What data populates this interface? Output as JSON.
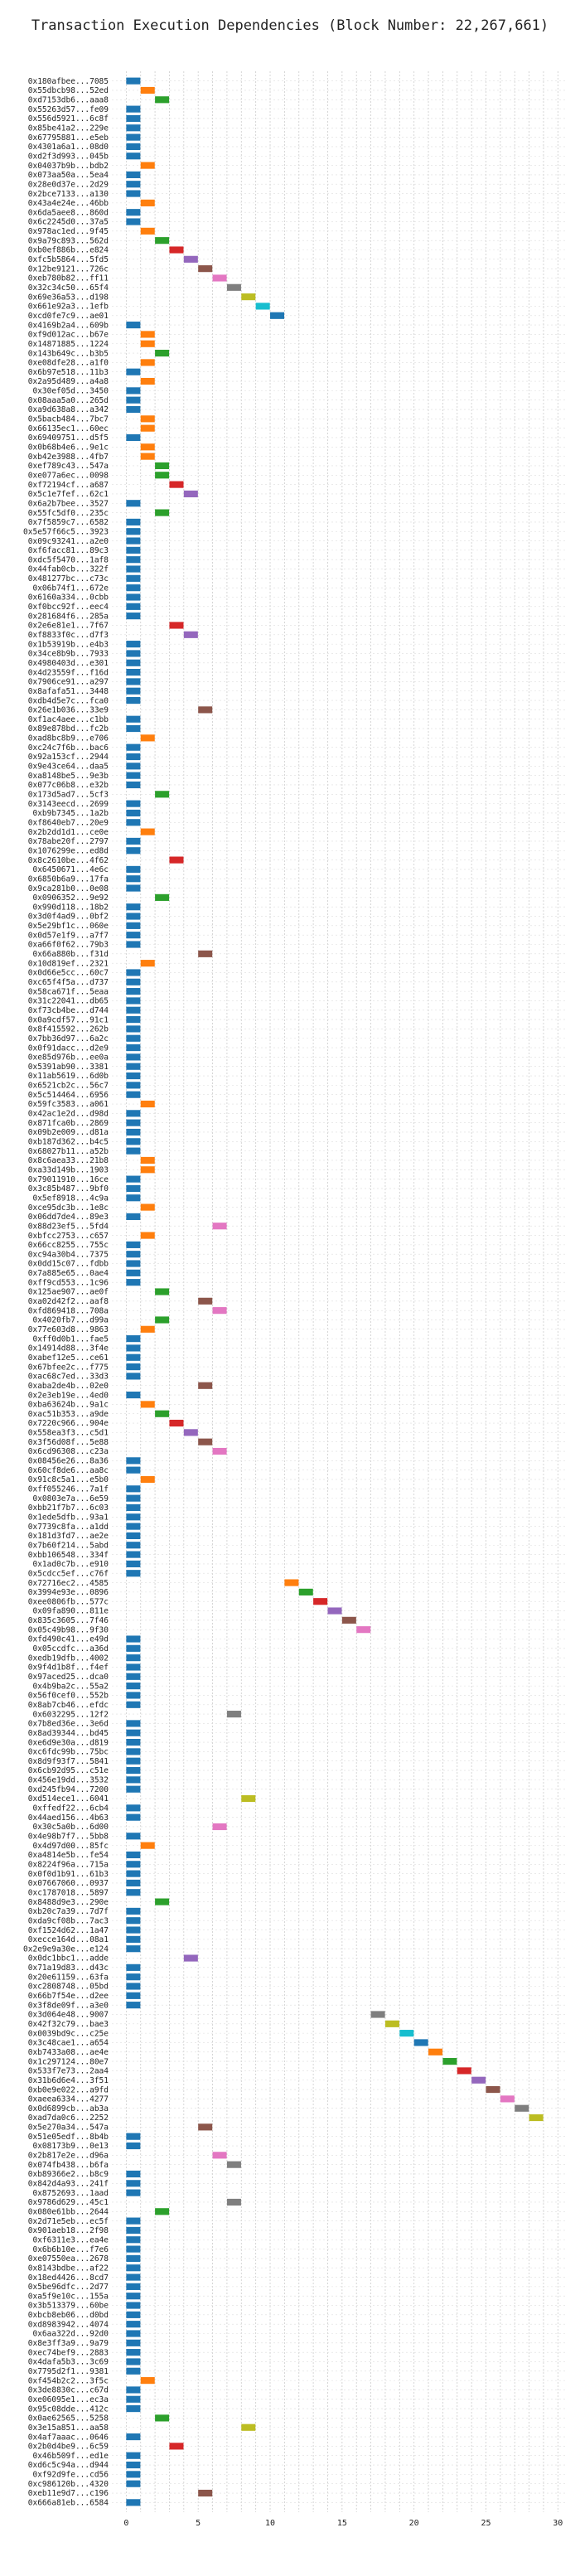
{
  "chart_data": {
    "type": "bar",
    "orientation": "horizontal-gantt",
    "title": "Transaction Execution Dependencies (Block Number: 22,267,661)",
    "xlabel": "",
    "ylabel": "",
    "xlim": [
      -1,
      30.5
    ],
    "xticks": [
      0,
      5,
      10,
      15,
      20,
      25,
      30
    ],
    "grid": true,
    "legend": "none",
    "palette": [
      "#1f77b4",
      "#ff7f0e",
      "#2ca02c",
      "#d62728",
      "#9467bd",
      "#8c564b",
      "#e377c2",
      "#7f7f7f",
      "#bcbd22",
      "#17becf"
    ],
    "bar_duration": 1,
    "transactions": [
      {
        "label": "0x180afbee...7085",
        "start": 0
      },
      {
        "label": "0x55dbcb98...52ed",
        "start": 1
      },
      {
        "label": "0xd7153db6...aaa8",
        "start": 2
      },
      {
        "label": "0x55263d57...fe09",
        "start": 0
      },
      {
        "label": "0x556d5921...6c8f",
        "start": 0
      },
      {
        "label": "0x85be41a2...229e",
        "start": 0
      },
      {
        "label": "0x67795881...e5eb",
        "start": 0
      },
      {
        "label": "0x4301a6a1...08d0",
        "start": 0
      },
      {
        "label": "0xd2f3d993...045b",
        "start": 0
      },
      {
        "label": "0x04037b9b...bdb2",
        "start": 1
      },
      {
        "label": "0x073aa50a...5ea4",
        "start": 0
      },
      {
        "label": "0x28e0d37e...2d29",
        "start": 0
      },
      {
        "label": "0x2bce7133...a130",
        "start": 0
      },
      {
        "label": "0x43a4e24e...46bb",
        "start": 1
      },
      {
        "label": "0x6da5aee8...860d",
        "start": 0
      },
      {
        "label": "0x6c2245d0...37a5",
        "start": 0
      },
      {
        "label": "0x978ac1ed...9f45",
        "start": 1
      },
      {
        "label": "0x9a79c893...562d",
        "start": 2
      },
      {
        "label": "0xb0ef886b...e824",
        "start": 3
      },
      {
        "label": "0xfc5b5864...5fd5",
        "start": 4
      },
      {
        "label": "0x12be9121...726c",
        "start": 5
      },
      {
        "label": "0xeb780b82...ff11",
        "start": 6
      },
      {
        "label": "0x32c34c50...65f4",
        "start": 7
      },
      {
        "label": "0x69e36a53...d198",
        "start": 8
      },
      {
        "label": "0x661e92a3...1efb",
        "start": 9
      },
      {
        "label": "0xcd0fe7c9...ae01",
        "start": 10
      },
      {
        "label": "0x4169b2a4...609b",
        "start": 0
      },
      {
        "label": "0xf9d012ac...b67e",
        "start": 1
      },
      {
        "label": "0x14871885...1224",
        "start": 1
      },
      {
        "label": "0x143b649c...b3b5",
        "start": 2
      },
      {
        "label": "0xe08dfe28...a1f0",
        "start": 1
      },
      {
        "label": "0x6b97e518...11b3",
        "start": 0
      },
      {
        "label": "0x2a95d489...a4a8",
        "start": 1
      },
      {
        "label": "0x30ef05d...3450",
        "start": 0
      },
      {
        "label": "0x08aaa5a0...265d",
        "start": 0
      },
      {
        "label": "0xa9d638a8...a342",
        "start": 0
      },
      {
        "label": "0x5bacb484...7bc7",
        "start": 1
      },
      {
        "label": "0x66135ec1...60ec",
        "start": 1
      },
      {
        "label": "0x69409751...d5f5",
        "start": 0
      },
      {
        "label": "0x0b68b4e6...9e1c",
        "start": 1
      },
      {
        "label": "0xb42e3988...4fb7",
        "start": 1
      },
      {
        "label": "0xef789c43...547a",
        "start": 2
      },
      {
        "label": "0xe077a6ec...0098",
        "start": 2
      },
      {
        "label": "0xf72194cf...a687",
        "start": 3
      },
      {
        "label": "0x5c1e7fef...62c1",
        "start": 4
      },
      {
        "label": "0x6a2b7bee...3527",
        "start": 0
      },
      {
        "label": "0x55fc5df0...235c",
        "start": 2
      },
      {
        "label": "0x7f5859c7...6582",
        "start": 0
      },
      {
        "label": "0x5e57f66c5...3923",
        "start": 0
      },
      {
        "label": "0x09c93241...a2e0",
        "start": 0
      },
      {
        "label": "0xf6facc81...89c3",
        "start": 0
      },
      {
        "label": "0xdc5f5470...1af8",
        "start": 0
      },
      {
        "label": "0x44fab0cb...322f",
        "start": 0
      },
      {
        "label": "0x481277bc...c73c",
        "start": 0
      },
      {
        "label": "0x06b74f1...672e",
        "start": 0
      },
      {
        "label": "0x6160a334...0cbb",
        "start": 0
      },
      {
        "label": "0xf0bcc92f...eec4",
        "start": 0
      },
      {
        "label": "0x281684f6...285a",
        "start": 0
      },
      {
        "label": "0x2e6e81e1...7f67",
        "start": 3
      },
      {
        "label": "0xf8833f0c...d7f3",
        "start": 4
      },
      {
        "label": "0x1b53919b...e4b3",
        "start": 0
      },
      {
        "label": "0x34ce8b9b...7933",
        "start": 0
      },
      {
        "label": "0x4980403d...e301",
        "start": 0
      },
      {
        "label": "0x4d23559f...f16d",
        "start": 0
      },
      {
        "label": "0x7906ce91...a297",
        "start": 0
      },
      {
        "label": "0x8afafa51...3448",
        "start": 0
      },
      {
        "label": "0xdb4d5e7c...fca0",
        "start": 0
      },
      {
        "label": "0x26e1b036...33e9",
        "start": 5
      },
      {
        "label": "0xf1ac4aee...c1bb",
        "start": 0
      },
      {
        "label": "0x89e878bd...fc2b",
        "start": 0
      },
      {
        "label": "0xad8bc8b9...e706",
        "start": 1
      },
      {
        "label": "0xc24c7f6b...bac6",
        "start": 0
      },
      {
        "label": "0x92a153cf...2944",
        "start": 0
      },
      {
        "label": "0x9e43ce64...daa5",
        "start": 0
      },
      {
        "label": "0xa8148be5...9e3b",
        "start": 0
      },
      {
        "label": "0x077c06b8...e32b",
        "start": 0
      },
      {
        "label": "0x173d5ad7...5cf3",
        "start": 2
      },
      {
        "label": "0x3143eecd...2699",
        "start": 0
      },
      {
        "label": "0xb9b7345...1a2b",
        "start": 0
      },
      {
        "label": "0xf8640eb7...20e9",
        "start": 0
      },
      {
        "label": "0x2b2dd1d1...ce0e",
        "start": 1
      },
      {
        "label": "0x78abe20f...2797",
        "start": 0
      },
      {
        "label": "0x1076299e...ed8d",
        "start": 0
      },
      {
        "label": "0x8c2610be...4f62",
        "start": 3
      },
      {
        "label": "0x6450671...4e6c",
        "start": 0
      },
      {
        "label": "0x6850b6a9...17fa",
        "start": 0
      },
      {
        "label": "0x9ca281b0...0e08",
        "start": 0
      },
      {
        "label": "0x0906352...9e92",
        "start": 2
      },
      {
        "label": "0x990d118...18b2",
        "start": 0
      },
      {
        "label": "0x3d0f4ad9...0bf2",
        "start": 0
      },
      {
        "label": "0x5e29bf1c...060e",
        "start": 0
      },
      {
        "label": "0x0d57e1f9...a7f7",
        "start": 0
      },
      {
        "label": "0xa66f0f62...79b3",
        "start": 0
      },
      {
        "label": "0x66a880b...f31d",
        "start": 5
      },
      {
        "label": "0x10d819ef...2321",
        "start": 1
      },
      {
        "label": "0x0d66e5cc...60c7",
        "start": 0
      },
      {
        "label": "0xc65f4f5a...d737",
        "start": 0
      },
      {
        "label": "0x58ca671f...5eaa",
        "start": 0
      },
      {
        "label": "0x31c22041...db65",
        "start": 0
      },
      {
        "label": "0xf73cb4be...d744",
        "start": 0
      },
      {
        "label": "0x0a9cdf57...91c1",
        "start": 0
      },
      {
        "label": "0x8f415592...262b",
        "start": 0
      },
      {
        "label": "0x7bb36d97...6a2c",
        "start": 0
      },
      {
        "label": "0x0f91dacc...d2e9",
        "start": 0
      },
      {
        "label": "0xe85d976b...ee0a",
        "start": 0
      },
      {
        "label": "0x5391ab90...3381",
        "start": 0
      },
      {
        "label": "0x11ab5619...6d0b",
        "start": 0
      },
      {
        "label": "0x6521cb2c...56c7",
        "start": 0
      },
      {
        "label": "0x5c514464...6956",
        "start": 0
      },
      {
        "label": "0x59fc3583...a061",
        "start": 1
      },
      {
        "label": "0x42ac1e2d...d98d",
        "start": 0
      },
      {
        "label": "0x871fca0b...2869",
        "start": 0
      },
      {
        "label": "0x09b2e009...d81a",
        "start": 0
      },
      {
        "label": "0xb187d362...b4c5",
        "start": 0
      },
      {
        "label": "0x68027b11...a52b",
        "start": 0
      },
      {
        "label": "0x8c6aea33...21b8",
        "start": 1
      },
      {
        "label": "0xa33d149b...1903",
        "start": 1
      },
      {
        "label": "0x79011910...16ce",
        "start": 0
      },
      {
        "label": "0x3c85b487...9bf0",
        "start": 0
      },
      {
        "label": "0x5ef8918...4c9a",
        "start": 0
      },
      {
        "label": "0xce95dc3b...1e8c",
        "start": 1
      },
      {
        "label": "0x06dd7de4...89e3",
        "start": 0
      },
      {
        "label": "0x88d23ef5...5fd4",
        "start": 6
      },
      {
        "label": "0xbfcc2753...c657",
        "start": 1
      },
      {
        "label": "0x66cc8255...755c",
        "start": 0
      },
      {
        "label": "0xc94a30b4...7375",
        "start": 0
      },
      {
        "label": "0x0dd15c07...fdbb",
        "start": 0
      },
      {
        "label": "0x7a885e65...0ae4",
        "start": 0
      },
      {
        "label": "0xff9cd553...1c96",
        "start": 0
      },
      {
        "label": "0x125ae907...ae0f",
        "start": 2
      },
      {
        "label": "0xa02d42f2...aaf8",
        "start": 5
      },
      {
        "label": "0xfd869418...708a",
        "start": 6
      },
      {
        "label": "0x4020fb7...d99a",
        "start": 2
      },
      {
        "label": "0x77e603d8...9863",
        "start": 1
      },
      {
        "label": "0xff0d0b1...fae5",
        "start": 0
      },
      {
        "label": "0x14914d88...3f4e",
        "start": 0
      },
      {
        "label": "0xabef12e5...ce61",
        "start": 0
      },
      {
        "label": "0x67bfee2c...f775",
        "start": 0
      },
      {
        "label": "0xac68c7ed...33d3",
        "start": 0
      },
      {
        "label": "0xaba2de4b...02e0",
        "start": 5
      },
      {
        "label": "0x2e3eb19e...4ed0",
        "start": 0
      },
      {
        "label": "0xba63624b...9a1c",
        "start": 1
      },
      {
        "label": "0xac51b353...a9de",
        "start": 2
      },
      {
        "label": "0x7220c966...904e",
        "start": 3
      },
      {
        "label": "0x558ea3f3...c5d1",
        "start": 4
      },
      {
        "label": "0x3f56d08f...5e88",
        "start": 5
      },
      {
        "label": "0x6cd96308...c23a",
        "start": 6
      },
      {
        "label": "0x08456e26...8a36",
        "start": 0
      },
      {
        "label": "0x60cf8de6...aa8c",
        "start": 0
      },
      {
        "label": "0x91c8c5a1...e5b0",
        "start": 1
      },
      {
        "label": "0xff055246...7a1f",
        "start": 0
      },
      {
        "label": "0x0803e7a...6e59",
        "start": 0
      },
      {
        "label": "0xbb21f7b7...6c03",
        "start": 0
      },
      {
        "label": "0x1ede5dfb...93a1",
        "start": 0
      },
      {
        "label": "0x7739c8fa...a1dd",
        "start": 0
      },
      {
        "label": "0x181d3fd7...ae2e",
        "start": 0
      },
      {
        "label": "0x7b60f214...5abd",
        "start": 0
      },
      {
        "label": "0xbb106548...334f",
        "start": 0
      },
      {
        "label": "0x1ad0c7b...e910",
        "start": 0
      },
      {
        "label": "0x5cdcc5ef...c76f",
        "start": 0
      },
      {
        "label": "0x72716ec2...4585",
        "start": 11
      },
      {
        "label": "0x3994e93e...0896",
        "start": 12
      },
      {
        "label": "0xee0806fb...577c",
        "start": 13
      },
      {
        "label": "0x09fa890...811e",
        "start": 14
      },
      {
        "label": "0x835c3605...7f46",
        "start": 15
      },
      {
        "label": "0x05c49b98...9f30",
        "start": 16
      },
      {
        "label": "0xfd490c41...e49d",
        "start": 0
      },
      {
        "label": "0x05ccdfc...a36d",
        "start": 0
      },
      {
        "label": "0xedb19dfb...4002",
        "start": 0
      },
      {
        "label": "0x9f4d1b8f...f4ef",
        "start": 0
      },
      {
        "label": "0x97aced25...dca0",
        "start": 0
      },
      {
        "label": "0x4b9ba2c...55a2",
        "start": 0
      },
      {
        "label": "0x56f0cef0...552b",
        "start": 0
      },
      {
        "label": "0x8ab7cb46...efdc",
        "start": 0
      },
      {
        "label": "0x6032295...12f2",
        "start": 7
      },
      {
        "label": "0x7b8ed36e...3e6d",
        "start": 0
      },
      {
        "label": "0x8ad39344...bd45",
        "start": 0
      },
      {
        "label": "0xe6d9e30a...d819",
        "start": 0
      },
      {
        "label": "0xc6fdc99b...75bc",
        "start": 0
      },
      {
        "label": "0x8d9f93f7...5841",
        "start": 0
      },
      {
        "label": "0x6cb92d95...c51e",
        "start": 0
      },
      {
        "label": "0x456e19dd...3532",
        "start": 0
      },
      {
        "label": "0xd245fb94...7200",
        "start": 0
      },
      {
        "label": "0xd514ece1...6041",
        "start": 8
      },
      {
        "label": "0xffedf22...6cb4",
        "start": 0
      },
      {
        "label": "0x44aed156...4b63",
        "start": 0
      },
      {
        "label": "0x30c5a0b...6d00",
        "start": 6
      },
      {
        "label": "0x4e98b7f7...5bb8",
        "start": 0
      },
      {
        "label": "0x4d97d00...85fc",
        "start": 1
      },
      {
        "label": "0xa4814e5b...fe54",
        "start": 0
      },
      {
        "label": "0x8224f96a...715a",
        "start": 0
      },
      {
        "label": "0x0f0d1b91...61b3",
        "start": 0
      },
      {
        "label": "0x07667060...0937",
        "start": 0
      },
      {
        "label": "0xc1787018...5897",
        "start": 0
      },
      {
        "label": "0x8488d9e3...290e",
        "start": 2
      },
      {
        "label": "0xb20c7a39...7d7f",
        "start": 0
      },
      {
        "label": "0xda9cf08b...7ac3",
        "start": 0
      },
      {
        "label": "0xf1524d62...1a47",
        "start": 0
      },
      {
        "label": "0xecce164d...08a1",
        "start": 0
      },
      {
        "label": "0x2e9e9a30e...e124",
        "start": 0
      },
      {
        "label": "0x0dc1bbc1...adde",
        "start": 4
      },
      {
        "label": "0x71a19d83...d43c",
        "start": 0
      },
      {
        "label": "0x20e61159...63fa",
        "start": 0
      },
      {
        "label": "0xc2808748...05bd",
        "start": 0
      },
      {
        "label": "0x66b7f54e...d2ee",
        "start": 0
      },
      {
        "label": "0x3f8de09f...a3e0",
        "start": 0
      },
      {
        "label": "0x3d064e48...9007",
        "start": 17
      },
      {
        "label": "0x42f32c79...bae3",
        "start": 18
      },
      {
        "label": "0x0039bd9c...c25e",
        "start": 19
      },
      {
        "label": "0x3c48cae1...a654",
        "start": 20
      },
      {
        "label": "0xb7433a08...ae4e",
        "start": 21
      },
      {
        "label": "0x1c297124...80e7",
        "start": 22
      },
      {
        "label": "0x533f7e73...2aa4",
        "start": 23
      },
      {
        "label": "0x31b6d6e4...3f51",
        "start": 24
      },
      {
        "label": "0xb0e9e022...a9fd",
        "start": 25
      },
      {
        "label": "0xaeea6334...4277",
        "start": 26
      },
      {
        "label": "0x0d6899cb...ab3a",
        "start": 27
      },
      {
        "label": "0xad7da0c6...2252",
        "start": 28
      },
      {
        "label": "0x5e270a34...547a",
        "start": 5
      },
      {
        "label": "0x51e05edf...8b4b",
        "start": 0
      },
      {
        "label": "0x08173b9...0e13",
        "start": 0
      },
      {
        "label": "0x2b817e2e...d96a",
        "start": 6
      },
      {
        "label": "0x074fb438...b6fa",
        "start": 7
      },
      {
        "label": "0xb89366e2...b8c9",
        "start": 0
      },
      {
        "label": "0x842d4a93...241f",
        "start": 0
      },
      {
        "label": "0x8752693...1aad",
        "start": 0
      },
      {
        "label": "0x9786d629...45c1",
        "start": 7
      },
      {
        "label": "0x080e61bb...2644",
        "start": 2
      },
      {
        "label": "0x2d71e5eb...ec5f",
        "start": 0
      },
      {
        "label": "0x901aeb18...2f98",
        "start": 0
      },
      {
        "label": "0xf6311e3...ea4e",
        "start": 0
      },
      {
        "label": "0x6b6b10e...f7e6",
        "start": 0
      },
      {
        "label": "0xe07550ea...2678",
        "start": 0
      },
      {
        "label": "0x8143bdbe...af22",
        "start": 0
      },
      {
        "label": "0x18ed4426...8cd7",
        "start": 0
      },
      {
        "label": "0x5be96dfc...2d77",
        "start": 0
      },
      {
        "label": "0xa5f9e10c...155a",
        "start": 0
      },
      {
        "label": "0x3b513379...60be",
        "start": 0
      },
      {
        "label": "0xbcb8eb06...d0bd",
        "start": 0
      },
      {
        "label": "0xd8983942...4074",
        "start": 0
      },
      {
        "label": "0x6aa322d...92d0",
        "start": 0
      },
      {
        "label": "0x8e3ff3a9...9a79",
        "start": 0
      },
      {
        "label": "0xec74bef9...2883",
        "start": 0
      },
      {
        "label": "0x4dafa5b3...3c69",
        "start": 0
      },
      {
        "label": "0x7795d2f1...9381",
        "start": 0
      },
      {
        "label": "0xf454b2c2...3f5c",
        "start": 1
      },
      {
        "label": "0x3de8830c...c67d",
        "start": 0
      },
      {
        "label": "0xe06095e1...ec3a",
        "start": 0
      },
      {
        "label": "0x95c08dde...412c",
        "start": 0
      },
      {
        "label": "0x0ae62565...5258",
        "start": 2
      },
      {
        "label": "0x3e15a851...aa58",
        "start": 8
      },
      {
        "label": "0x4af7aaac...0646",
        "start": 0
      },
      {
        "label": "0x2b0d4be9...6c59",
        "start": 3
      },
      {
        "label": "0x46b509f...ed1e",
        "start": 0
      },
      {
        "label": "0xd6c5c94a...d944",
        "start": 0
      },
      {
        "label": "0xf92d9fe...cd56",
        "start": 0
      },
      {
        "label": "0xc986120b...4320",
        "start": 0
      },
      {
        "label": "0xeb11e9d7...c196",
        "start": 5
      },
      {
        "label": "0x666a81eb...6584",
        "start": 0
      }
    ]
  }
}
